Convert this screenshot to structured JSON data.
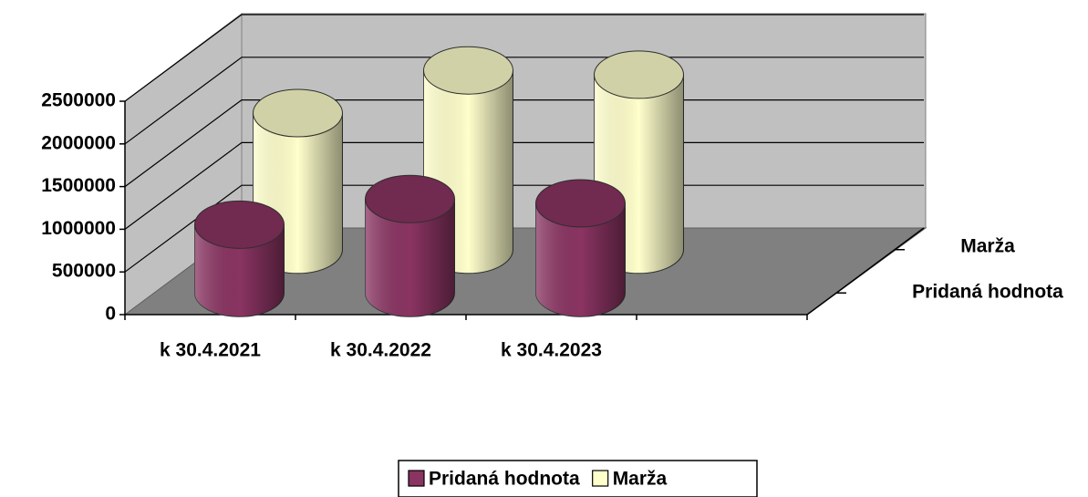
{
  "chart_data": {
    "type": "bar3d-cylinder",
    "categories": [
      "k 30.4.2021",
      "k 30.4.2022",
      "k 30.4.2023",
      null
    ],
    "series": [
      {
        "name": "Pridaná hodnota",
        "color": "#8a3462",
        "values": [
          800000,
          1100000,
          1050000,
          null
        ]
      },
      {
        "name": "Marža",
        "color": "#ffffcc",
        "values": [
          1600000,
          2100000,
          2050000,
          null
        ]
      }
    ],
    "ylim": [
      0,
      2500000
    ],
    "yticks": [
      0,
      500000,
      1000000,
      1500000,
      2000000,
      2500000
    ],
    "grid": true,
    "legend": "bottom"
  }
}
